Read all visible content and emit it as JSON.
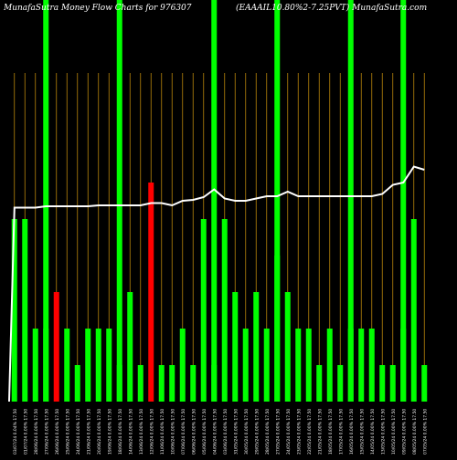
{
  "title_left": "MunafaSutra  Money Flow  Charts for 976307",
  "title_right": "(EAAAIL10.80%2-7.25PVT)  MunafaSutra.com",
  "colors": {
    "background": "#000000",
    "up": "#00ff00",
    "down": "#ff0000",
    "grid_line": "#b8860b",
    "price_line": "#ffffff",
    "tall_column": "#00ff00"
  },
  "chart_data": {
    "type": "bar",
    "title": "MunafaSutra  Money Flow  Charts for 976307",
    "categories": [
      "03/07/24 0.04% 17.50",
      "01/07/24 0.00% 17.50",
      "28/06/24 0.00% 17.50",
      "27/06/24 0.00% 17.50",
      "26/06/24 0.00% 17.50",
      "25/06/24 0.00% 17.50",
      "24/06/24 0.00% 17.50",
      "21/06/24 0.00% 17.50",
      "20/06/24 0.00% 17.50",
      "19/06/24 0.00% 17.50",
      "18/06/24 0.00% 17.50",
      "14/06/24 0.00% 17.50",
      "13/06/24 0.00% 17.50",
      "12/06/24 0.00% 17.50",
      "11/06/24 0.00% 17.50",
      "10/06/24 0.00% 17.50",
      "07/06/24 0.00% 17.50",
      "06/06/24 0.00% 17.50",
      "05/06/24 0.00% 17.50",
      "04/06/24 0.00% 17.50",
      "03/06/24 0.00% 17.50",
      "31/05/24 0.00% 17.50",
      "30/05/24 0.00% 17.50",
      "29/05/24 0.00% 17.50",
      "28/05/24 0.00% 17.50",
      "27/05/24 0.00% 17.50",
      "24/05/24 0.00% 17.50",
      "23/05/24 0.00% 17.50",
      "22/05/24 0.00% 17.50",
      "21/05/24 0.00% 17.50",
      "18/05/24 0.00% 17.50",
      "17/05/24 0.00% 17.50",
      "16/05/24 0.00% 17.50",
      "15/05/24 0.00% 17.50",
      "14/05/24 0.00% 17.50",
      "13/05/24 0.00% 17.50",
      "10/05/24 0.00% 17.50",
      "09/05/24 0.00% 17.50",
      "08/05/24 0.00% 17.50",
      "07/05/24 0.00% 17.50"
    ],
    "values": [
      5,
      5,
      2,
      2,
      3,
      2,
      1,
      2,
      2,
      2,
      1,
      3,
      1,
      6,
      1,
      1,
      2,
      1,
      5,
      1,
      5,
      3,
      2,
      3,
      2,
      4,
      3,
      2,
      2,
      1,
      2,
      1,
      2,
      2,
      2,
      1,
      1,
      2,
      5,
      1
    ],
    "colors": [
      "up",
      "up",
      "up",
      "up",
      "down",
      "up",
      "up",
      "up",
      "up",
      "up",
      "up",
      "up",
      "up",
      "down",
      "up",
      "up",
      "up",
      "up",
      "up",
      "up",
      "up",
      "up",
      "up",
      "up",
      "up",
      "up",
      "up",
      "up",
      "up",
      "up",
      "up",
      "up",
      "up",
      "up",
      "up",
      "up",
      "up",
      "up",
      "up",
      "up"
    ],
    "price_line": [
      0.545,
      0.545,
      0.545,
      0.542,
      0.542,
      0.542,
      0.542,
      0.542,
      0.54,
      0.54,
      0.54,
      0.54,
      0.54,
      0.535,
      0.535,
      0.54,
      0.53,
      0.528,
      0.522,
      0.505,
      0.525,
      0.53,
      0.53,
      0.525,
      0.52,
      0.52,
      0.51,
      0.52,
      0.52,
      0.52,
      0.52,
      0.52,
      0.52,
      0.52,
      0.52,
      0.515,
      0.495,
      0.49,
      0.455,
      0.462
    ],
    "tall_columns": [
      3,
      10,
      19,
      25,
      32,
      37
    ],
    "ylim": [
      0,
      10
    ],
    "grid": true,
    "xlabel": "",
    "ylabel": ""
  }
}
